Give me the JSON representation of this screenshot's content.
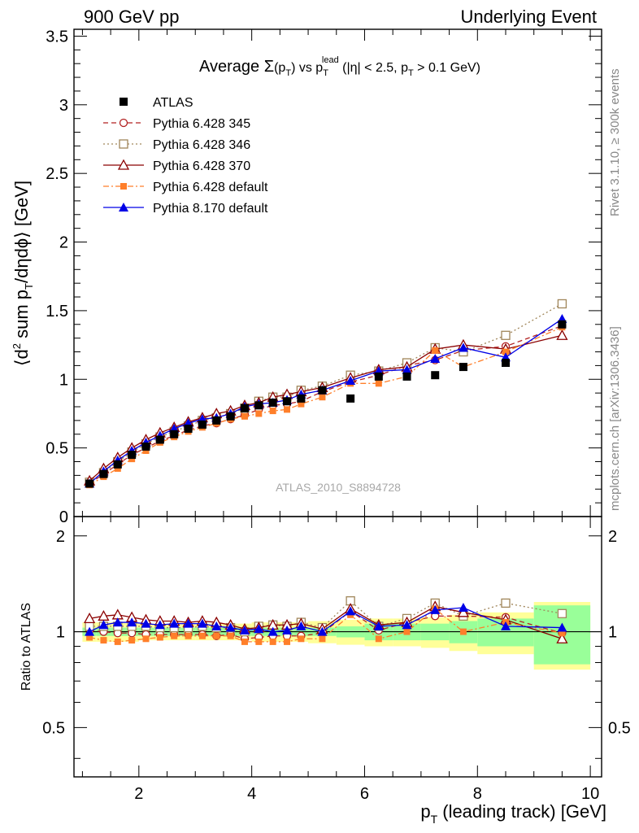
{
  "header": {
    "left": "900 GeV pp",
    "right": "Underlying Event"
  },
  "side_labels": {
    "rivet": "Rivet 3.1.10, ≥ 300k events",
    "mcplots": "mcplots.cern.ch [arXiv:1306.3436]"
  },
  "chart_data": [
    {
      "type": "line",
      "panel": "main",
      "title": "Average Σ(p_T) vs p_T^lead (|η| < 2.5, p_T > 0.1 GeV)",
      "xlabel": "p_T (leading track) [GeV]",
      "ylabel": "⟨d² sum p_T/dηdϕ⟩ [GeV]",
      "xlim": [
        0.85,
        10.2
      ],
      "ylim": [
        0,
        3.55
      ],
      "yticks": [
        0,
        0.5,
        1,
        1.5,
        2,
        2.5,
        3,
        3.5
      ],
      "xticks": [
        2,
        4,
        6,
        8,
        10
      ],
      "watermark": "ATLAS_2010_S8894728",
      "legend_position": "top-left",
      "x": [
        1.125,
        1.375,
        1.625,
        1.875,
        2.125,
        2.375,
        2.625,
        2.875,
        3.125,
        3.375,
        3.625,
        3.875,
        4.125,
        4.375,
        4.625,
        4.875,
        5.25,
        5.75,
        6.25,
        6.75,
        7.25,
        7.75,
        8.5,
        9.5
      ],
      "series": [
        {
          "name": "ATLAS",
          "color": "#000000",
          "marker": "filled-square",
          "dash": "none",
          "values": [
            0.24,
            0.31,
            0.38,
            0.45,
            0.51,
            0.56,
            0.6,
            0.64,
            0.67,
            0.7,
            0.73,
            0.79,
            0.81,
            0.83,
            0.84,
            0.86,
            0.92,
            0.86,
            1.02,
            1.02,
            1.03,
            1.09,
            1.12,
            1.4
          ]
        },
        {
          "name": "Pythia 6.428 345",
          "color": "#b22222",
          "marker": "open-circle",
          "dash": "6,4",
          "values": [
            0.24,
            0.31,
            0.38,
            0.45,
            0.5,
            0.55,
            0.59,
            0.63,
            0.66,
            0.68,
            0.71,
            0.74,
            0.78,
            0.81,
            0.82,
            0.84,
            0.91,
            0.98,
            1.03,
            1.1,
            1.14,
            1.21,
            1.24,
            1.39
          ]
        },
        {
          "name": "Pythia 6.428 346",
          "color": "#a0865a",
          "marker": "open-square",
          "dash": "2,3",
          "values": [
            0.25,
            0.32,
            0.4,
            0.47,
            0.53,
            0.58,
            0.62,
            0.66,
            0.7,
            0.72,
            0.75,
            0.79,
            0.84,
            0.87,
            0.87,
            0.92,
            0.95,
            1.03,
            1.06,
            1.12,
            1.23,
            1.2,
            1.32,
            1.55
          ]
        },
        {
          "name": "Pythia 6.428 370",
          "color": "#8b0000",
          "marker": "open-triangle",
          "dash": "none",
          "values": [
            0.26,
            0.35,
            0.43,
            0.5,
            0.56,
            0.61,
            0.65,
            0.69,
            0.72,
            0.75,
            0.77,
            0.81,
            0.83,
            0.87,
            0.89,
            0.91,
            0.94,
            1.01,
            1.07,
            1.09,
            1.22,
            1.25,
            1.22,
            1.32
          ]
        },
        {
          "name": "Pythia 6.428 default",
          "color": "#ff7f2a",
          "marker": "filled-square-small",
          "dash": "7,3,2,3",
          "values": [
            0.23,
            0.29,
            0.35,
            0.42,
            0.48,
            0.54,
            0.58,
            0.62,
            0.65,
            0.68,
            0.71,
            0.73,
            0.75,
            0.77,
            0.78,
            0.82,
            0.87,
            0.97,
            0.97,
            1.02,
            1.21,
            1.09,
            1.2,
            1.38
          ]
        },
        {
          "name": "Pythia 8.170 default",
          "color": "#0000e6",
          "marker": "filled-triangle",
          "dash": "none",
          "values": [
            0.24,
            0.33,
            0.41,
            0.48,
            0.54,
            0.59,
            0.64,
            0.68,
            0.71,
            0.72,
            0.75,
            0.8,
            0.82,
            0.83,
            0.85,
            0.89,
            0.92,
            0.99,
            1.06,
            1.07,
            1.15,
            1.23,
            1.16,
            1.44
          ]
        }
      ]
    },
    {
      "type": "line",
      "panel": "ratio",
      "xlabel": "p_T (leading track) [GeV]",
      "ylabel": "Ratio to ATLAS",
      "xlim": [
        0.85,
        10.2
      ],
      "ylim": [
        0.35,
        2.3
      ],
      "yticks": [
        0.5,
        1,
        2
      ],
      "xticks": [
        2,
        4,
        6,
        8,
        10
      ],
      "band_edges": [
        1.0,
        1.25,
        1.5,
        1.75,
        2.0,
        2.25,
        2.5,
        2.75,
        3.0,
        3.25,
        3.5,
        3.75,
        4.0,
        4.25,
        4.5,
        4.75,
        5.0,
        5.5,
        6.0,
        6.5,
        7.0,
        7.5,
        8.0,
        9.0,
        10.0
      ],
      "band_green": [
        0.03,
        0.03,
        0.03,
        0.03,
        0.03,
        0.03,
        0.03,
        0.03,
        0.03,
        0.03,
        0.03,
        0.03,
        0.03,
        0.03,
        0.03,
        0.03,
        0.03,
        0.04,
        0.06,
        0.06,
        0.06,
        0.08,
        0.1,
        0.21
      ],
      "band_yellow": [
        0.07,
        0.07,
        0.07,
        0.07,
        0.06,
        0.06,
        0.06,
        0.06,
        0.06,
        0.06,
        0.06,
        0.06,
        0.07,
        0.07,
        0.07,
        0.07,
        0.08,
        0.09,
        0.1,
        0.1,
        0.11,
        0.13,
        0.15,
        0.24
      ],
      "series_ratio": [
        {
          "name": "Pythia 6.428 345",
          "values": [
            1.01,
            1.0,
            0.99,
            0.99,
            0.98,
            0.98,
            0.98,
            0.98,
            0.98,
            0.97,
            0.98,
            0.95,
            0.96,
            0.97,
            0.97,
            0.97,
            0.99,
            1.16,
            1.01,
            1.07,
            1.12,
            1.12,
            1.11,
            0.99
          ]
        },
        {
          "name": "Pythia 6.428 346",
          "values": [
            1.04,
            1.04,
            1.04,
            1.04,
            1.04,
            1.03,
            1.03,
            1.03,
            1.04,
            1.03,
            1.03,
            1.0,
            1.04,
            1.05,
            1.04,
            1.07,
            1.03,
            1.25,
            1.04,
            1.1,
            1.23,
            1.12,
            1.23,
            1.14
          ]
        },
        {
          "name": "Pythia 6.428 370",
          "values": [
            1.1,
            1.12,
            1.13,
            1.11,
            1.09,
            1.08,
            1.08,
            1.07,
            1.08,
            1.07,
            1.05,
            1.02,
            1.03,
            1.05,
            1.05,
            1.06,
            1.02,
            1.18,
            1.05,
            1.07,
            1.2,
            1.15,
            1.09,
            0.95
          ]
        },
        {
          "name": "Pythia 6.428 default",
          "values": [
            0.96,
            0.94,
            0.93,
            0.94,
            0.95,
            0.96,
            0.97,
            0.97,
            0.97,
            0.97,
            0.97,
            0.93,
            0.93,
            0.93,
            0.93,
            0.95,
            0.95,
            1.13,
            0.95,
            1.0,
            1.18,
            1.0,
            1.07,
            0.99
          ]
        },
        {
          "name": "Pythia 8.170 default",
          "values": [
            1.0,
            1.05,
            1.07,
            1.07,
            1.06,
            1.05,
            1.06,
            1.06,
            1.06,
            1.04,
            1.03,
            1.01,
            1.02,
            1.0,
            1.01,
            1.04,
            1.0,
            1.16,
            1.04,
            1.05,
            1.17,
            1.19,
            1.04,
            1.03
          ]
        }
      ]
    }
  ]
}
